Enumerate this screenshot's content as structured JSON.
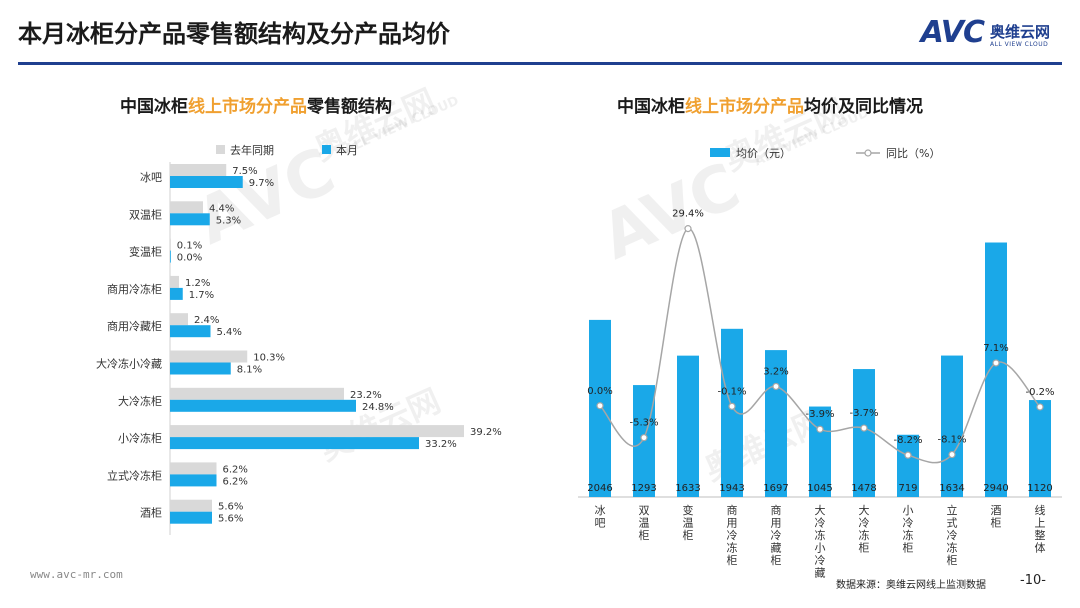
{
  "page": {
    "title": "本月冰柜分产品零售额结构及分产品均价",
    "logo_mark": "AVC",
    "logo_cn": "奥维云网",
    "logo_en": "ALL VIEW CLOUD",
    "footer_url": "www.avc-mr.com",
    "footer_source": "数据来源：奥维云网线上监测数据",
    "page_number": "-10-",
    "watermark_mark": "AVC",
    "watermark_cn": "奥维云网",
    "watermark_en": "ALL VIEW CLOUD"
  },
  "left_title": {
    "pre": "中国冰柜",
    "highlight": "线上市场分产品",
    "post": "零售额结构"
  },
  "right_title": {
    "pre": "中国冰柜",
    "highlight": "线上市场分产品",
    "post": "均价及同比情况"
  },
  "colors": {
    "last_year": "#d9d9d9",
    "this_month": "#1aa8e8",
    "line": "#a6a6a6",
    "highlight": "#f0a030",
    "brand": "#1f3f8f"
  },
  "chart_data": [
    {
      "type": "bar",
      "orientation": "horizontal",
      "title": "中国冰柜线上市场分产品零售额结构",
      "categories": [
        "冰吧",
        "双温柜",
        "变温柜",
        "商用冷冻柜",
        "商用冷藏柜",
        "大冷冻小冷藏",
        "大冷冻柜",
        "小冷冻柜",
        "立式冷冻柜",
        "酒柜"
      ],
      "series": [
        {
          "name": "去年同期",
          "values": [
            7.5,
            4.4,
            0.1,
            1.2,
            2.4,
            10.3,
            23.2,
            39.2,
            6.2,
            5.6
          ]
        },
        {
          "name": "本月",
          "values": [
            9.7,
            5.3,
            0.0,
            1.7,
            5.4,
            8.1,
            24.8,
            33.2,
            6.2,
            5.6
          ]
        }
      ],
      "xlim": [
        0,
        40
      ],
      "unit": "%"
    },
    {
      "type": "bar",
      "title": "中国冰柜线上市场分产品均价及同比情况",
      "categories": [
        "冰吧",
        "双温柜",
        "变温柜",
        "商用冷冻柜",
        "商用冷藏柜",
        "大冷冻小冷藏",
        "大冷冻柜",
        "小冷冻柜",
        "立式冷冻柜",
        "酒柜",
        "线上整体"
      ],
      "series": [
        {
          "name": "均价（元）",
          "type": "bar",
          "values": [
            2046,
            1293,
            1633,
            1943,
            1697,
            1045,
            1478,
            719,
            1634,
            2940,
            1120
          ]
        },
        {
          "name": "同比（%）",
          "type": "line",
          "values": [
            0.0,
            -5.3,
            29.4,
            -0.1,
            3.2,
            -3.9,
            -3.7,
            -8.2,
            -8.1,
            7.1,
            -0.2
          ]
        }
      ],
      "ylim_bar": [
        0,
        3200
      ],
      "ylim_line": [
        -10,
        30
      ]
    }
  ]
}
